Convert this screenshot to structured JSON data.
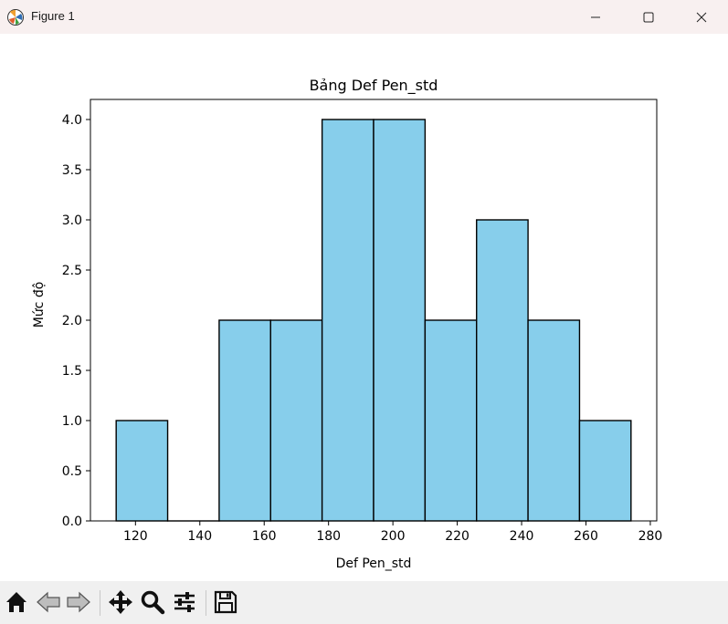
{
  "window": {
    "title": "Figure 1",
    "icons": {
      "app": "matplotlib-icon",
      "minimize": "minimize-icon",
      "maximize": "maximize-icon",
      "close": "close-icon"
    }
  },
  "chart_data": {
    "type": "bar",
    "title": "Bảng Def Pen_std",
    "xlabel": "Def Pen_std",
    "ylabel": "Mức độ",
    "bins": [
      {
        "x0": 114,
        "x1": 130,
        "count": 1
      },
      {
        "x0": 130,
        "x1": 146,
        "count": 0
      },
      {
        "x0": 146,
        "x1": 162,
        "count": 2
      },
      {
        "x0": 162,
        "x1": 178,
        "count": 2
      },
      {
        "x0": 178,
        "x1": 194,
        "count": 4
      },
      {
        "x0": 194,
        "x1": 210,
        "count": 4
      },
      {
        "x0": 210,
        "x1": 226,
        "count": 2
      },
      {
        "x0": 226,
        "x1": 242,
        "count": 3
      },
      {
        "x0": 242,
        "x1": 258,
        "count": 2
      },
      {
        "x0": 258,
        "x1": 274,
        "count": 1
      }
    ],
    "xlim": [
      106,
      282
    ],
    "ylim": [
      0,
      4.2
    ],
    "xticks": [
      120,
      140,
      160,
      180,
      200,
      220,
      240,
      260,
      280
    ],
    "yticks": [
      0,
      0.5,
      1,
      1.5,
      2,
      2.5,
      3,
      3.5,
      4
    ],
    "yticklabels": [
      "0.0",
      "0.5",
      "1.0",
      "1.5",
      "2.0",
      "2.5",
      "3.0",
      "3.5",
      "4.0"
    ],
    "bar_color": "#87ceeb",
    "edge_color": "#000000",
    "grid": false
  },
  "toolbar": {
    "items": [
      {
        "name": "home-button",
        "icon": "home-icon"
      },
      {
        "name": "back-button",
        "icon": "arrow-left-icon"
      },
      {
        "name": "forward-button",
        "icon": "arrow-right-icon"
      },
      {
        "name": "pan-button",
        "icon": "move-icon"
      },
      {
        "name": "zoom-button",
        "icon": "magnifier-icon"
      },
      {
        "name": "configure-subplots-button",
        "icon": "sliders-icon"
      },
      {
        "name": "save-button",
        "icon": "floppy-disk-icon"
      }
    ]
  }
}
